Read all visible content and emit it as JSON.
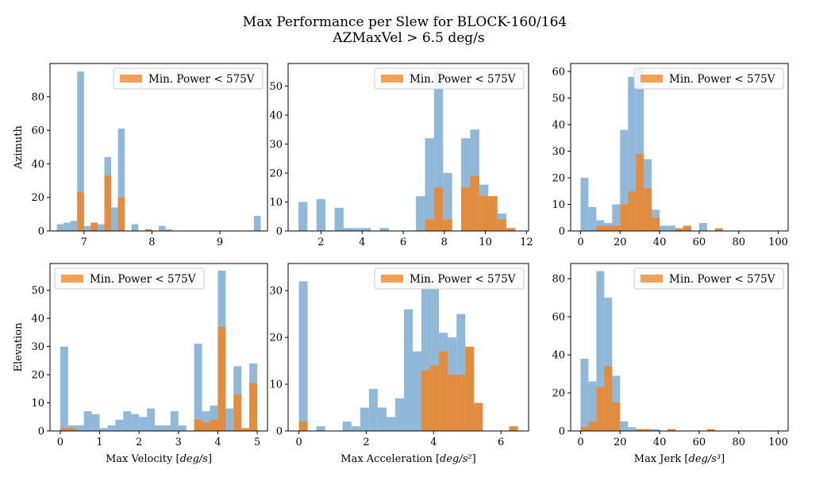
{
  "suptitle": [
    "Max Performance per Slew for BLOCK-160/164",
    "AZMaxVel > 6.5 deg/s"
  ],
  "colors": {
    "all": "#8fb8d9",
    "low": "#f5a055",
    "overlap": "#e18c3f"
  },
  "chart_data": [
    {
      "id": "az-velocity",
      "type": "bar",
      "ylabel": "Azimuth",
      "xlabel": "",
      "legend": "Min. Power < 575V",
      "legend_loc": "upper right",
      "xlim": [
        6.5,
        9.7
      ],
      "ylim": [
        0,
        99.8
      ],
      "xticks": [
        7,
        8,
        9
      ],
      "yticks": [
        0,
        20,
        40,
        60,
        80
      ],
      "bin_start": 6.6,
      "bin_width": 0.1,
      "all": [
        4,
        5,
        6,
        95,
        3,
        4,
        4,
        44,
        14,
        61,
        0,
        4,
        0,
        0,
        0,
        3,
        1,
        0,
        0,
        0,
        0,
        0,
        0,
        0,
        0,
        0,
        0,
        0,
        0,
        9
      ],
      "low": [
        0,
        0,
        0,
        23,
        0,
        5,
        0,
        33,
        0,
        20,
        0,
        0,
        0,
        1,
        0,
        0,
        0,
        0,
        0,
        0,
        0,
        0,
        0,
        0,
        0,
        0,
        0,
        0,
        0,
        0
      ]
    },
    {
      "id": "az-acceleration",
      "type": "bar",
      "ylabel": "",
      "xlabel": "",
      "legend": "Min. Power < 575V",
      "legend_loc": "upper right",
      "xlim": [
        0.4,
        12.1
      ],
      "ylim": [
        0,
        57.8
      ],
      "xticks": [
        2,
        4,
        6,
        8,
        10,
        12
      ],
      "yticks": [
        0,
        10,
        20,
        30,
        40,
        50
      ],
      "bin_start": 0.9,
      "bin_width": 0.44,
      "all": [
        10,
        0,
        11,
        0,
        8,
        1,
        1,
        1,
        0,
        1,
        0,
        0,
        0,
        12,
        32,
        55,
        20,
        0,
        32,
        35,
        16,
        12,
        6,
        0,
        0
      ],
      "low": [
        0,
        0,
        0,
        0,
        0,
        0,
        0,
        0,
        0,
        0,
        0,
        0,
        0,
        0,
        4,
        15,
        4,
        0,
        15,
        19,
        12,
        12,
        4,
        1,
        0
      ]
    },
    {
      "id": "az-jerk",
      "type": "bar",
      "ylabel": "",
      "xlabel": "",
      "legend": "Min. Power < 575V",
      "legend_loc": "upper right",
      "xlim": [
        -5,
        105
      ],
      "ylim": [
        0,
        63
      ],
      "xticks": [
        0,
        20,
        40,
        60,
        80,
        100
      ],
      "yticks": [
        0,
        10,
        20,
        30,
        40,
        50,
        60
      ],
      "bin_start": 0,
      "bin_width": 4,
      "all": [
        20,
        9,
        4,
        3,
        10,
        38,
        58,
        61,
        27,
        8,
        2,
        2,
        1,
        0,
        0,
        3,
        0,
        0,
        0,
        0,
        0,
        0,
        0,
        0,
        0
      ],
      "low": [
        0,
        0,
        2,
        2,
        2,
        10,
        15,
        29,
        16,
        5,
        0,
        0,
        1,
        2,
        0,
        0,
        0,
        1,
        0,
        0,
        0,
        0,
        0,
        0,
        0
      ]
    },
    {
      "id": "el-velocity",
      "type": "bar",
      "ylabel": "Elevation",
      "xlabel": "Max Velocity [deg/s]",
      "legend": "Min. Power < 575V",
      "legend_loc": "upper left",
      "xlim": [
        -0.26,
        5.26
      ],
      "ylim": [
        0,
        59.5
      ],
      "xticks": [
        0,
        1,
        2,
        3,
        4,
        5
      ],
      "yticks": [
        0,
        10,
        20,
        30,
        40,
        50
      ],
      "bin_start": 0,
      "bin_width": 0.2,
      "all": [
        30,
        2,
        2,
        7,
        6,
        1,
        2,
        4,
        7,
        6,
        5,
        8,
        2,
        2,
        7,
        2,
        0,
        31,
        7,
        9,
        57,
        8,
        23,
        0,
        24
      ],
      "low": [
        1,
        1,
        0,
        0,
        0,
        0,
        0,
        0,
        0,
        0,
        0,
        0,
        0,
        0,
        0,
        0,
        0,
        4,
        3,
        4,
        37,
        0,
        13,
        1,
        17
      ]
    },
    {
      "id": "el-acceleration",
      "type": "bar",
      "ylabel": "",
      "xlabel": "Max Acceleration [deg/s²]",
      "legend": "Min. Power < 575V",
      "legend_loc": "upper right",
      "xlim": [
        -0.32,
        6.82
      ],
      "ylim": [
        0,
        35.8
      ],
      "xticks": [
        0,
        2,
        4,
        6
      ],
      "yticks": [
        0,
        10,
        20,
        30
      ],
      "bin_start": 0,
      "bin_width": 0.26,
      "all": [
        32,
        0,
        1,
        0,
        0,
        2,
        1,
        5,
        9,
        5,
        3,
        7,
        26,
        17,
        33,
        31,
        21,
        20,
        25,
        18,
        0,
        0,
        0,
        0,
        0
      ],
      "low": [
        2,
        0,
        0,
        0,
        0,
        0,
        0,
        0,
        0,
        0,
        0,
        0,
        0,
        0,
        13,
        14,
        17,
        12,
        12,
        18,
        6,
        0,
        0,
        0,
        1
      ]
    },
    {
      "id": "el-jerk",
      "type": "bar",
      "ylabel": "",
      "xlabel": "Max Jerk [deg/s³]",
      "legend": "Min. Power < 575V",
      "legend_loc": "upper right",
      "xlim": [
        -5,
        105
      ],
      "ylim": [
        0,
        88
      ],
      "xticks": [
        0,
        20,
        40,
        60,
        80,
        100
      ],
      "yticks": [
        0,
        20,
        40,
        60,
        80
      ],
      "bin_start": 0,
      "bin_width": 4,
      "all": [
        38,
        26,
        84,
        70,
        29,
        5,
        2,
        1,
        0,
        1,
        0,
        0,
        0,
        0,
        0,
        0,
        0,
        0,
        0,
        0,
        0,
        0,
        0,
        0,
        0
      ],
      "low": [
        2,
        5,
        23,
        34,
        15,
        0,
        0,
        1,
        1,
        0,
        0,
        1,
        0,
        0,
        0,
        0,
        1,
        0,
        0,
        0,
        0,
        0,
        0,
        0,
        0
      ]
    }
  ]
}
